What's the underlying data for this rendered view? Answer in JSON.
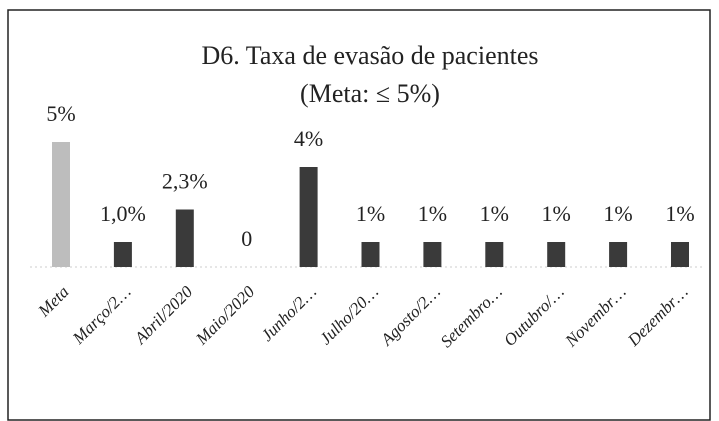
{
  "chart_data": {
    "type": "bar",
    "title": "D6. Taxa de evasão de pacientes",
    "subtitle": "(Meta: ≤ 5%)",
    "categories": [
      "Meta",
      "Março/2…",
      "Abril/2020",
      "Maio/2020",
      "Junho/2…",
      "Julho/20…",
      "Agosto/2…",
      "Setembro…",
      "Outubro/…",
      "Novembr…",
      "Dezembr…"
    ],
    "values": [
      5,
      1.0,
      2.3,
      0,
      4,
      1,
      1,
      1,
      1,
      1,
      1
    ],
    "value_labels": [
      "5%",
      "1,0%",
      "2,3%",
      "0",
      "4%",
      "1%",
      "1%",
      "1%",
      "1%",
      "1%",
      "1%"
    ],
    "colors": [
      "#bdbdbd",
      "#3a3a3a",
      "#3a3a3a",
      "#3a3a3a",
      "#3a3a3a",
      "#3a3a3a",
      "#3a3a3a",
      "#3a3a3a",
      "#3a3a3a",
      "#3a3a3a",
      "#3a3a3a"
    ]
  }
}
